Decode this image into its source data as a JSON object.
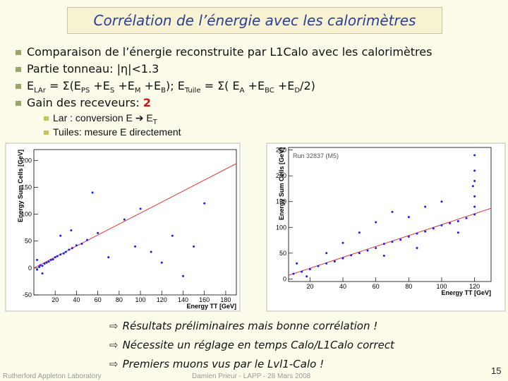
{
  "header": {
    "title": "Corrélation de l’énergie avec les calorimètres"
  },
  "bullets": [
    [
      {
        "text": "Comparaison de l’énergie reconstruite par L1Calo avec les calorimètres"
      }
    ],
    [
      {
        "text": "Partie tonneau: |η|<1.3"
      }
    ],
    [
      {
        "text": "E"
      },
      {
        "text": "LAr",
        "style": "sub"
      },
      {
        "text": " = Σ(E"
      },
      {
        "text": "PS",
        "style": "sub"
      },
      {
        "text": " +E"
      },
      {
        "text": "S",
        "style": "sub"
      },
      {
        "text": " +E"
      },
      {
        "text": "M",
        "style": "sub"
      },
      {
        "text": " +E"
      },
      {
        "text": "B",
        "style": "sub"
      },
      {
        "text": "); E"
      },
      {
        "text": "Tuile",
        "style": "sub"
      },
      {
        "text": " = Σ( E"
      },
      {
        "text": "A",
        "style": "sub"
      },
      {
        "text": " +E"
      },
      {
        "text": "BC",
        "style": "sub"
      },
      {
        "text": " +E"
      },
      {
        "text": "D",
        "style": "sub"
      },
      {
        "text": "/2)"
      }
    ],
    [
      {
        "text": "Gain des receveurs: "
      },
      {
        "text": "2",
        "style": "red"
      }
    ]
  ],
  "sub_bullets": [
    [
      {
        "text": "Lar   : conversion E ➔ E"
      },
      {
        "text": "T",
        "style": "sub"
      }
    ],
    [
      {
        "text": "Tuiles: mesure E directement"
      }
    ]
  ],
  "chart_data": [
    {
      "type": "scatter",
      "xlabel": "Energy TT [GeV]",
      "ylabel": "Energy Sum Cells [GeV]",
      "xlim": [
        0,
        190
      ],
      "ylim": [
        -50,
        220
      ],
      "xticks": [
        20,
        40,
        60,
        80,
        100,
        120,
        140,
        160,
        180
      ],
      "yticks": [
        -50,
        0,
        50,
        100,
        150,
        200
      ],
      "x": [
        3,
        5,
        6,
        8,
        10,
        12,
        14,
        16,
        18,
        20,
        22,
        25,
        28,
        30,
        33,
        36,
        40,
        45,
        50,
        60,
        70,
        85,
        95,
        100,
        110,
        120,
        130,
        140,
        150,
        160,
        25,
        35,
        55,
        3,
        8
      ],
      "series": [
        {
          "color": "#1a1aff",
          "values": [
            -3,
            2,
            5,
            4,
            8,
            10,
            12,
            15,
            16,
            20,
            22,
            25,
            27,
            30,
            34,
            37,
            42,
            45,
            52,
            65,
            20,
            90,
            40,
            110,
            30,
            10,
            60,
            -15,
            40,
            120,
            60,
            70,
            140,
            15,
            -10
          ]
        }
      ],
      "fit": {
        "color": "#e02020",
        "x": [
          0,
          190
        ],
        "y": [
          0,
          194
        ]
      }
    },
    {
      "type": "scatter",
      "xlabel": "Energy TT [GeV]",
      "ylabel": "Energy Sum Cells [GeV]",
      "annotation": "Run 32837 (M5)",
      "xlim": [
        7,
        130
      ],
      "ylim": [
        -5,
        255
      ],
      "xticks": [
        20,
        40,
        60,
        80,
        100,
        120
      ],
      "yticks": [
        0,
        50,
        100,
        150,
        200,
        250
      ],
      "x": [
        10,
        15,
        20,
        25,
        30,
        35,
        40,
        45,
        50,
        55,
        60,
        65,
        70,
        75,
        80,
        85,
        90,
        95,
        100,
        105,
        110,
        115,
        120,
        120,
        120,
        120,
        120,
        120,
        119,
        60,
        70,
        80,
        90,
        100,
        50,
        40,
        85,
        65,
        30,
        110,
        12,
        18
      ],
      "series": [
        {
          "color": "#1a1aff",
          "values": [
            10,
            14,
            19,
            25,
            30,
            34,
            40,
            46,
            50,
            55,
            60,
            68,
            72,
            76,
            82,
            88,
            92,
            98,
            104,
            108,
            112,
            118,
            125,
            140,
            160,
            190,
            210,
            240,
            180,
            110,
            130,
            120,
            140,
            150,
            90,
            70,
            60,
            45,
            50,
            90,
            30,
            5
          ]
        }
      ],
      "fit": {
        "color": "#e02020",
        "x": [
          7,
          130
        ],
        "y": [
          7,
          137
        ]
      }
    }
  ],
  "conclusions": [
    "Résultats préliminaires mais bonne corrélation !",
    "Nécessite un réglage en temps Calo/L1Calo correct",
    "Premiers muons vus par le Lvl1-Calo !"
  ],
  "footer": {
    "left": "Rutherford Appleton Laboratory",
    "center": "Damien Prieur - LAPP - 28 Mars 2008",
    "page": "15"
  }
}
